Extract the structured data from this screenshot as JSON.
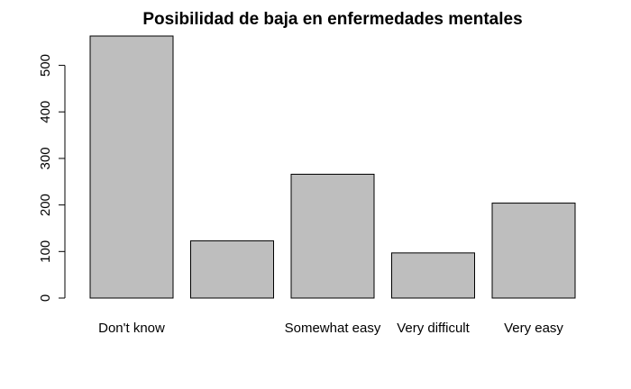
{
  "chart_data": {
    "type": "bar",
    "title": "Posibilidad de baja en enfermedades mentales",
    "xlabel": "",
    "ylabel": "",
    "categories": [
      "Don't know",
      "",
      "Somewhat easy",
      "Very difficult",
      "Very easy"
    ],
    "values": [
      563,
      123,
      266,
      97,
      204
    ],
    "ylim": [
      0,
      563
    ],
    "yticks": [
      0,
      100,
      200,
      300,
      400,
      500
    ],
    "bar_color": "#bebebe",
    "grid": false,
    "legend": "none"
  }
}
